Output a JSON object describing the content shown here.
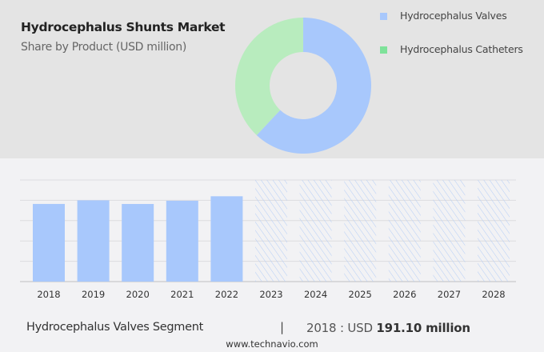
{
  "header": {
    "title": "Hydrocephalus Shunts Market",
    "subtitle": "Share by Product (USD million)"
  },
  "chart_data": [
    {
      "type": "pie",
      "variant": "donut",
      "slices": [
        {
          "name": "Hydrocephalus Valves",
          "value": 62,
          "color": "#a8c8fc"
        },
        {
          "name": "Hydrocephalus Catheters",
          "value": 38,
          "color": "#b8ecbe"
        }
      ],
      "legend_colors": [
        "#a8c8fc",
        "#7ee29a"
      ],
      "legend_position": "right"
    },
    {
      "type": "bar",
      "categories": [
        "2018",
        "2019",
        "2020",
        "2021",
        "2022",
        "2023",
        "2024",
        "2025",
        "2026",
        "2027",
        "2028"
      ],
      "values": [
        191.1,
        200,
        191,
        199,
        210,
        null,
        null,
        null,
        null,
        null,
        null
      ],
      "forecast_hatched": [
        "2023",
        "2024",
        "2025",
        "2026",
        "2027",
        "2028"
      ],
      "ylim": [
        0,
        250
      ],
      "grid": true,
      "color": "#a8c8fc"
    }
  ],
  "footer": {
    "segment": "Hydrocephalus Valves Segment",
    "separator": "|",
    "year_label": "2018 : USD ",
    "value": "191.10 million",
    "site": "www.technavio.com"
  }
}
